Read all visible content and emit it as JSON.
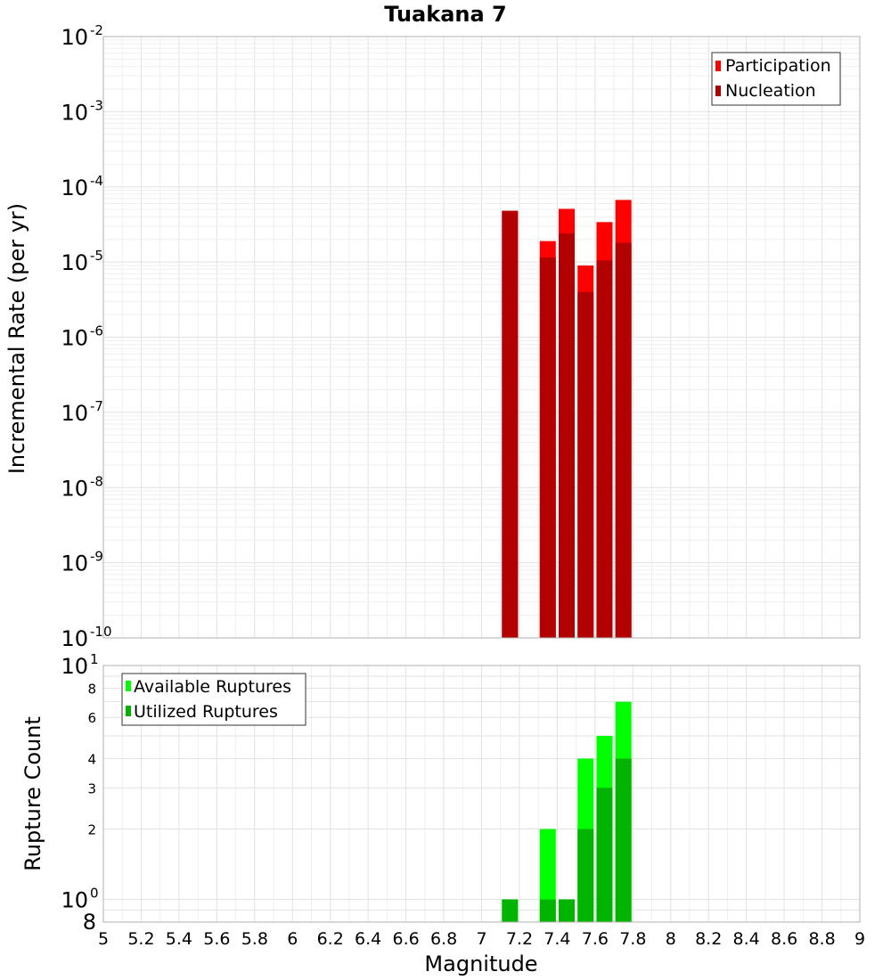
{
  "title": "Tuakana 7",
  "xlabel": "Magnitude",
  "x_tick_labels": [
    "5",
    "5.2",
    "5.4",
    "5.6",
    "5.8",
    "6",
    "6.2",
    "6.4",
    "6.6",
    "6.8",
    "7",
    "7.2",
    "7.4",
    "7.6",
    "7.8",
    "8",
    "8.2",
    "8.4",
    "8.6",
    "8.8",
    "9"
  ],
  "top_ytick_labels": [
    {
      "base": "10",
      "exp": "-2"
    },
    {
      "base": "10",
      "exp": "-3"
    },
    {
      "base": "10",
      "exp": "-4"
    },
    {
      "base": "10",
      "exp": "-5"
    },
    {
      "base": "10",
      "exp": "-6"
    },
    {
      "base": "10",
      "exp": "-7"
    },
    {
      "base": "10",
      "exp": "-8"
    },
    {
      "base": "10",
      "exp": "-9"
    },
    {
      "base": "10",
      "exp": "-10"
    }
  ],
  "bottom_ytick_labels": {
    "major": [
      {
        "base": "10",
        "exp": "1"
      },
      {
        "base": "10",
        "exp": "0"
      }
    ],
    "minor": [
      "8",
      "6",
      "4",
      "3",
      "2"
    ],
    "bottom_label": "8"
  },
  "colors": {
    "participation": "#ff0000",
    "nucleation": "#b30000",
    "available": "#00ff00",
    "utilized": "#00b400"
  },
  "chart_data": [
    {
      "type": "bar",
      "title": "Tuakana 7",
      "xlabel": "Magnitude",
      "ylabel": "Incremental Rate (per yr)",
      "yscale": "log",
      "xlim": [
        5,
        9
      ],
      "ylim": [
        1e-10,
        0.01
      ],
      "grid": true,
      "legend_position": "top-right",
      "x": [
        7.15,
        7.35,
        7.45,
        7.55,
        7.65,
        7.75
      ],
      "series": [
        {
          "name": "Participation",
          "color": "#ff0000",
          "values": [
            4.8e-05,
            1.9e-05,
            5.1e-05,
            9e-06,
            3.4e-05,
            6.7e-05
          ]
        },
        {
          "name": "Nucleation",
          "color": "#b30000",
          "values": [
            4.8e-05,
            1.15e-05,
            2.4e-05,
            4e-06,
            1.05e-05,
            1.8e-05
          ]
        }
      ]
    },
    {
      "type": "bar",
      "xlabel": "Magnitude",
      "ylabel": "Rupture Count",
      "yscale": "log",
      "xlim": [
        5,
        9
      ],
      "ylim": [
        0.8,
        10
      ],
      "grid": true,
      "legend_position": "top-left",
      "x": [
        7.15,
        7.35,
        7.45,
        7.55,
        7.65,
        7.75
      ],
      "series": [
        {
          "name": "Available Ruptures",
          "color": "#00ff00",
          "values": [
            1,
            2,
            1,
            4,
            5,
            7
          ]
        },
        {
          "name": "Utilized Ruptures",
          "color": "#00b400",
          "values": [
            1,
            1,
            1,
            2,
            3,
            4
          ]
        }
      ]
    }
  ]
}
